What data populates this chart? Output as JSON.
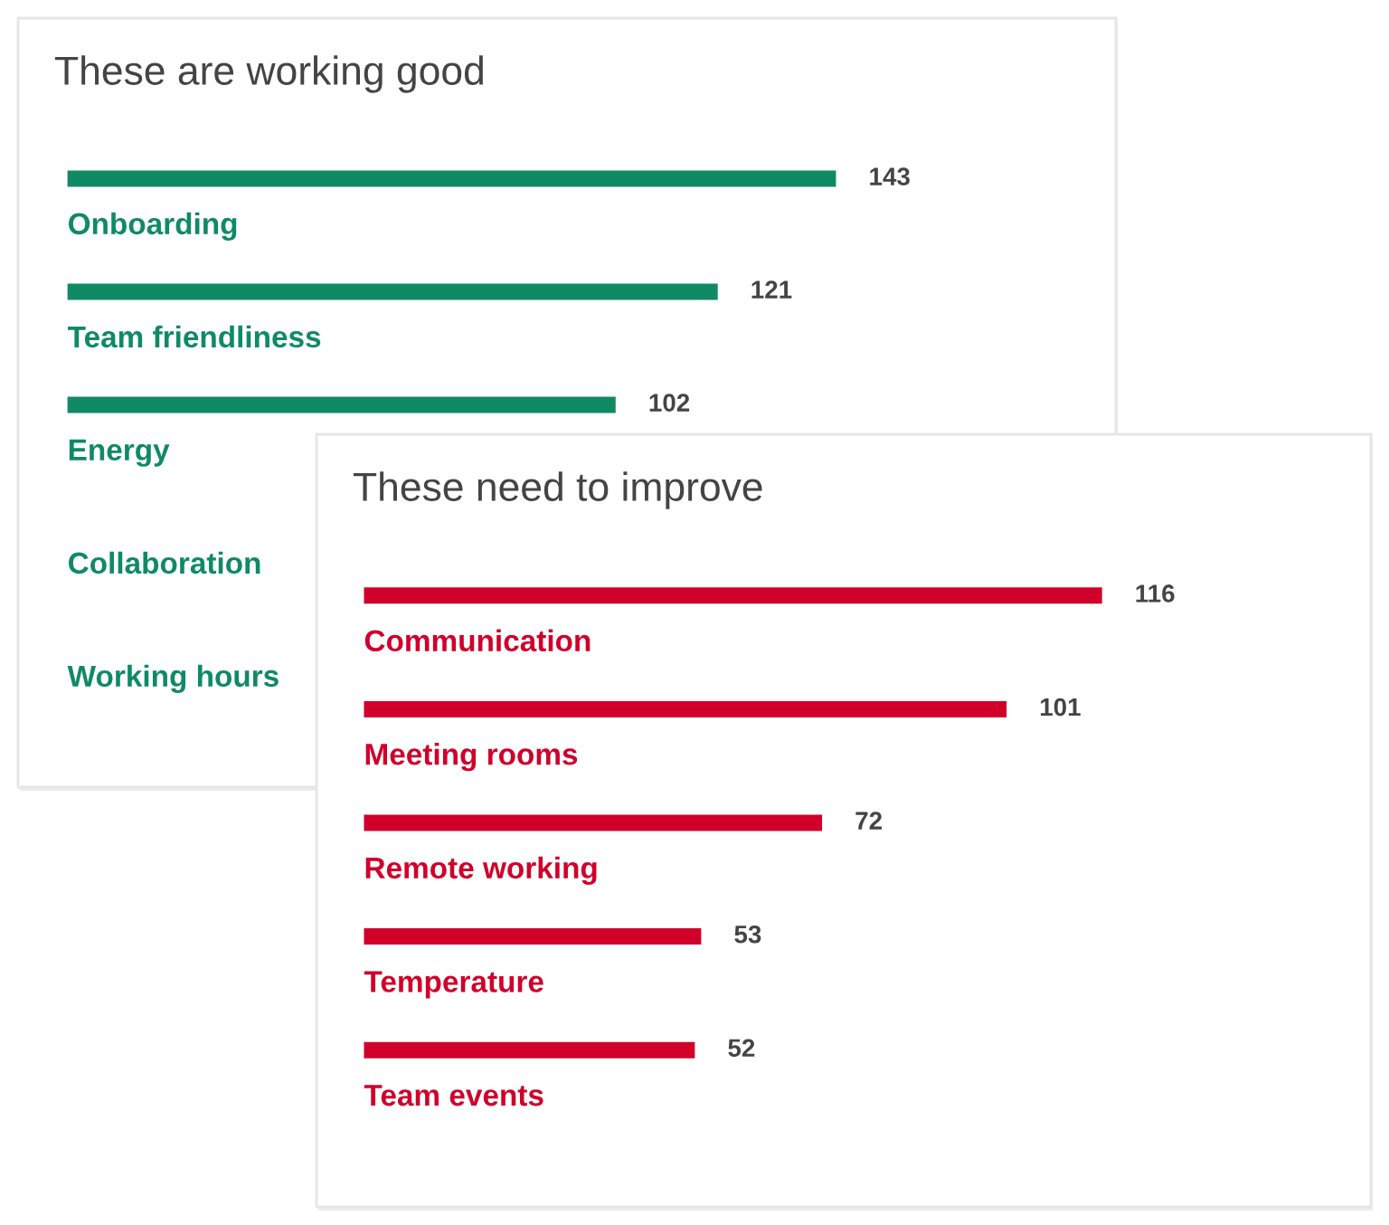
{
  "chart_data": [
    {
      "type": "bar",
      "orientation": "horizontal",
      "title": "These are working good",
      "categories": [
        "Onboarding",
        "Team friendliness",
        "Energy",
        "Collaboration",
        "Working hours"
      ],
      "values": [
        143,
        121,
        102,
        null,
        null
      ],
      "color": "#0f8a65",
      "data_labels": true,
      "tick_labels": "y"
    },
    {
      "type": "bar",
      "orientation": "horizontal",
      "title": "These need to improve",
      "categories": [
        "Communication",
        "Meeting rooms",
        "Remote working",
        "Temperature",
        "Team events"
      ],
      "values": [
        116,
        101,
        72,
        53,
        52
      ],
      "color": "#d0002b",
      "data_labels": true,
      "tick_labels": "y"
    }
  ]
}
